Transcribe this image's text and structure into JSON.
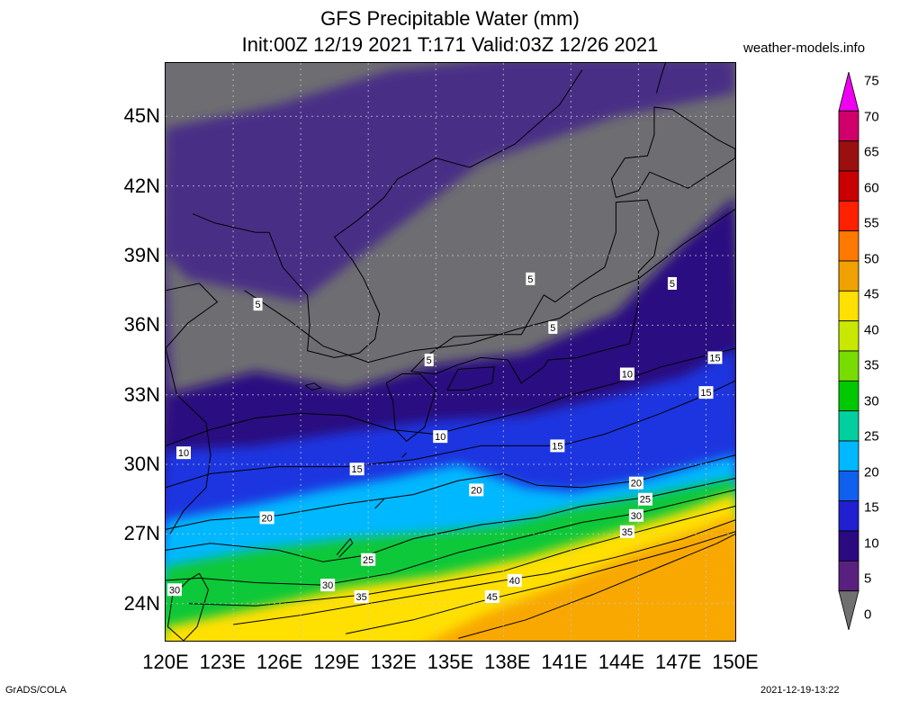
{
  "header": {
    "title": "GFS Precipitable Water (mm)",
    "subtitle": "Init:00Z 12/19 2021 T:171 Valid:03Z 12/26 2021",
    "site": "weather-models.info"
  },
  "footer": {
    "left": "GrADS/COLA",
    "right": "2021-12-19-13:22"
  },
  "axes": {
    "x_ticks": [
      "120E",
      "123E",
      "126E",
      "129E",
      "132E",
      "135E",
      "138E",
      "141E",
      "144E",
      "147E",
      "150E"
    ],
    "y_ticks": [
      "45N",
      "42N",
      "39N",
      "36N",
      "33N",
      "30N",
      "27N",
      "24N"
    ]
  },
  "contour_labels": [
    {
      "text": "5",
      "lon": 136.2,
      "lat": 38.0
    },
    {
      "text": "5",
      "lon": 142.5,
      "lat": 37.8
    },
    {
      "text": "5",
      "lon": 124.1,
      "lat": 36.9
    },
    {
      "text": "5",
      "lon": 137.2,
      "lat": 35.9
    },
    {
      "text": "5",
      "lon": 131.7,
      "lat": 34.5
    },
    {
      "text": "10",
      "lon": 140.5,
      "lat": 33.9
    },
    {
      "text": "15",
      "lon": 144.4,
      "lat": 34.6
    },
    {
      "text": "15",
      "lon": 144.0,
      "lat": 33.1
    },
    {
      "text": "10",
      "lon": 132.2,
      "lat": 31.2
    },
    {
      "text": "10",
      "lon": 120.8,
      "lat": 30.5
    },
    {
      "text": "15",
      "lon": 137.4,
      "lat": 30.8
    },
    {
      "text": "15",
      "lon": 128.5,
      "lat": 29.8
    },
    {
      "text": "20",
      "lon": 140.9,
      "lat": 29.2
    },
    {
      "text": "20",
      "lon": 133.8,
      "lat": 28.9
    },
    {
      "text": "25",
      "lon": 141.3,
      "lat": 28.5
    },
    {
      "text": "20",
      "lon": 124.5,
      "lat": 27.7
    },
    {
      "text": "30",
      "lon": 140.9,
      "lat": 27.8
    },
    {
      "text": "35",
      "lon": 140.5,
      "lat": 27.1
    },
    {
      "text": "45",
      "lon": 149.5,
      "lat": 28.5
    },
    {
      "text": "50",
      "lon": 146.6,
      "lat": 27.1
    },
    {
      "text": "25",
      "lon": 129.0,
      "lat": 25.9
    },
    {
      "text": "40",
      "lon": 135.5,
      "lat": 25.0
    },
    {
      "text": "30",
      "lon": 127.2,
      "lat": 24.8
    },
    {
      "text": "35",
      "lon": 128.7,
      "lat": 24.3
    },
    {
      "text": "45",
      "lon": 134.5,
      "lat": 24.3
    },
    {
      "text": "30",
      "lon": 120.4,
      "lat": 24.6
    }
  ],
  "colorbar": {
    "labels": [
      "75",
      "70",
      "65",
      "60",
      "55",
      "50",
      "45",
      "40",
      "35",
      "30",
      "25",
      "20",
      "15",
      "10",
      "5",
      "0"
    ],
    "colors": [
      "#f000f0",
      "#d0006a",
      "#9a1010",
      "#c80000",
      "#ff2000",
      "#ff7800",
      "#f0a000",
      "#ffe000",
      "#c8e800",
      "#78dc00",
      "#00c800",
      "#00d0a0",
      "#00b8ff",
      "#1060f0",
      "#2020d0",
      "#2a0a80",
      "#5a2080",
      "#707070"
    ],
    "range": [
      0,
      75
    ]
  },
  "colors": {
    "dry": "#6e6e72",
    "purple": "#4a2d86",
    "deep_purple": "#2a0a80",
    "blue": "#1e36e0",
    "cyan": "#00b8ff",
    "green": "#10c838",
    "yellow": "#ffe000",
    "orange": "#f8a800"
  }
}
